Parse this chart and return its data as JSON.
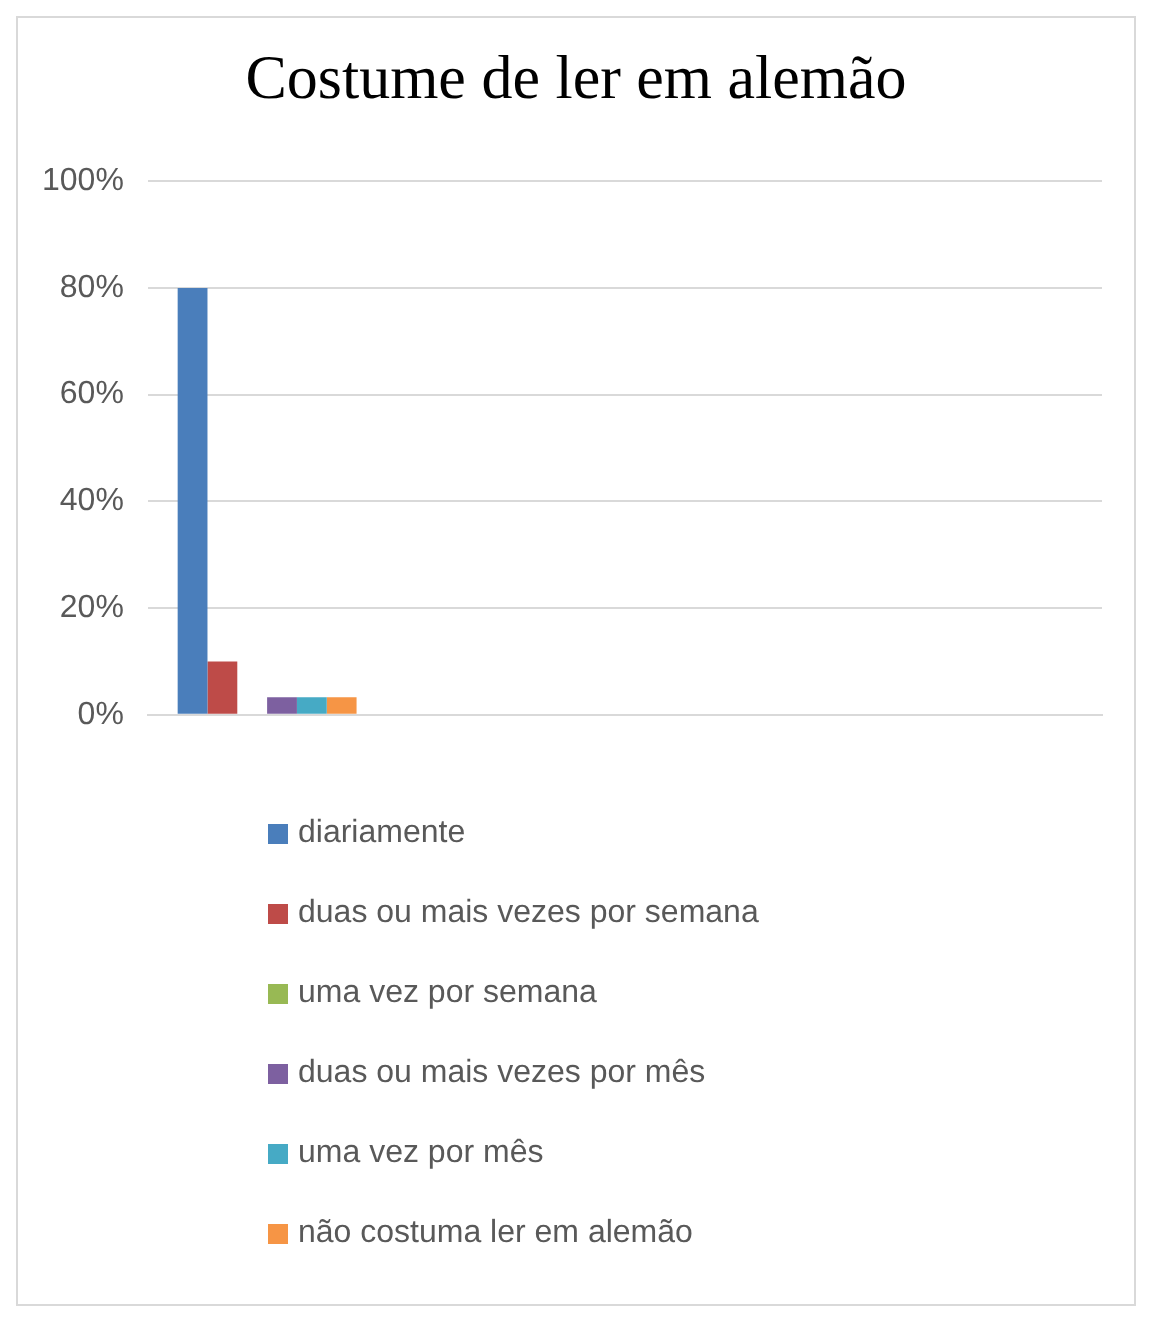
{
  "chart_data": {
    "type": "bar",
    "title": "Costume de ler em alemão",
    "categories": [
      null,
      null,
      null,
      null
    ],
    "series": [
      {
        "name": "diariamente",
        "color": "#4a7ebb",
        "values": [
          80,
          null,
          null,
          null
        ]
      },
      {
        "name": "duas ou mais vezes por semana",
        "color": "#be4b48",
        "values": [
          10,
          null,
          null,
          null
        ]
      },
      {
        "name": "uma vez por semana",
        "color": "#98b954",
        "values": [
          0,
          null,
          null,
          null
        ]
      },
      {
        "name": "duas ou mais vezes por mês",
        "color": "#7d60a0",
        "values": [
          3.3,
          null,
          null,
          null
        ]
      },
      {
        "name": "uma vez por mês",
        "color": "#46aac5",
        "values": [
          3.3,
          null,
          null,
          null
        ]
      },
      {
        "name": "não costuma ler em alemão",
        "color": "#f69545",
        "values": [
          3.3,
          null,
          null,
          null
        ]
      }
    ],
    "ylim": [
      0,
      100
    ],
    "yticks": [
      {
        "value": 0,
        "label": "0%"
      },
      {
        "value": 20,
        "label": "20%"
      },
      {
        "value": 40,
        "label": "40%"
      },
      {
        "value": 60,
        "label": "60%"
      },
      {
        "value": 80,
        "label": "80%"
      },
      {
        "value": 100,
        "label": "100%"
      }
    ],
    "grid": "y",
    "legend": "bottom"
  }
}
